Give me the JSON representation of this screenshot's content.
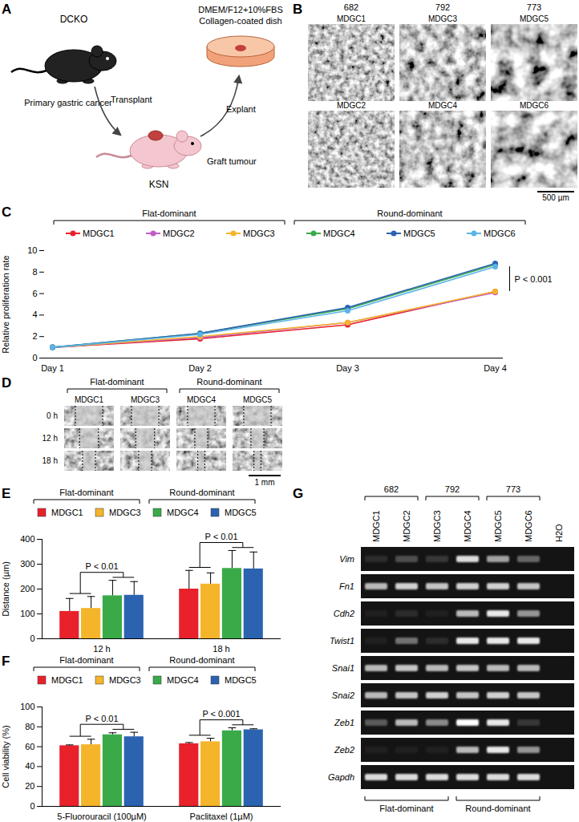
{
  "chart_data": [
    {
      "panel_label": "C",
      "type": "line",
      "categories": [
        "Day 1",
        "Day 2",
        "Day 3",
        "Day 4"
      ],
      "ylabel": "Relative proliferation rate",
      "ylim": [
        0,
        10
      ],
      "yticks": [
        0,
        2,
        4,
        6,
        8,
        10
      ],
      "marker": "circle",
      "legend": "top",
      "groups": [
        {
          "label": "Flat-dominant",
          "members": [
            "MDGC1",
            "MDGC2",
            "MDGC3"
          ]
        },
        {
          "label": "Round-dominant",
          "members": [
            "MDGC4",
            "MDGC5",
            "MDGC6"
          ]
        }
      ],
      "series": [
        {
          "name": "MDGC1",
          "color": "#e8212b",
          "values": [
            1,
            1.8,
            3.1,
            6.2
          ],
          "errors": [
            0,
            0.06,
            0.1,
            0.12
          ]
        },
        {
          "name": "MDGC2",
          "color": "#c05cc4",
          "values": [
            1,
            1.9,
            3.3,
            6.1
          ],
          "errors": [
            0,
            0.06,
            0.12,
            0.1
          ]
        },
        {
          "name": "MDGC3",
          "color": "#f5b52a",
          "values": [
            1,
            2.0,
            3.3,
            6.2
          ],
          "errors": [
            0,
            0.08,
            0.12,
            0.12
          ]
        },
        {
          "name": "MDGC4",
          "color": "#3aaa48",
          "values": [
            1,
            2.3,
            4.6,
            8.7
          ],
          "errors": [
            0,
            0.08,
            0.12,
            0.2
          ]
        },
        {
          "name": "MDGC5",
          "color": "#2b63b0",
          "values": [
            1,
            2.3,
            4.7,
            8.8
          ],
          "errors": [
            0,
            0.08,
            0.12,
            0.2
          ]
        },
        {
          "name": "MDGC6",
          "color": "#5ab4e6",
          "values": [
            1,
            2.2,
            4.4,
            8.5
          ],
          "errors": [
            0,
            0.08,
            0.15,
            0.25
          ]
        }
      ],
      "annotations": [
        {
          "text": "P < 0.001",
          "category": "Day 4"
        }
      ]
    },
    {
      "panel_label": "E",
      "type": "bar",
      "categories": [
        "12 h",
        "18 h"
      ],
      "ylabel": "Distance (µm)",
      "ylim": [
        0,
        400
      ],
      "yticks": [
        0,
        100,
        200,
        300,
        400
      ],
      "legend": "top",
      "groups": [
        {
          "label": "Flat-dominant",
          "members": [
            "MDGC1",
            "MDGC3"
          ]
        },
        {
          "label": "Round-dominant",
          "members": [
            "MDGC4",
            "MDGC5"
          ]
        }
      ],
      "series": [
        {
          "name": "MDGC1",
          "color": "#e8212b",
          "values": [
            110,
            200
          ],
          "errors": [
            52,
            75
          ]
        },
        {
          "name": "MDGC3",
          "color": "#f5b52a",
          "values": [
            122,
            220
          ],
          "errors": [
            48,
            45
          ]
        },
        {
          "name": "MDGC4",
          "color": "#3aaa48",
          "values": [
            173,
            283
          ],
          "errors": [
            62,
            72
          ]
        },
        {
          "name": "MDGC5",
          "color": "#2b63b0",
          "values": [
            175,
            281
          ],
          "errors": [
            55,
            68
          ]
        }
      ],
      "annotations": [
        {
          "text": "P < 0.01",
          "category": "12 h"
        },
        {
          "text": "P < 0.01",
          "category": "18 h"
        }
      ]
    },
    {
      "panel_label": "F",
      "type": "bar",
      "categories": [
        "5-Fluorouracil (100µM)",
        "Paclitaxel (1µM)"
      ],
      "ylabel": "Cell viability (%)",
      "ylim": [
        0,
        100
      ],
      "yticks": [
        0,
        20,
        40,
        60,
        80,
        100
      ],
      "legend": "top",
      "groups": [
        {
          "label": "Flat-dominant",
          "members": [
            "MDGC1",
            "MDGC3"
          ]
        },
        {
          "label": "Round-dominant",
          "members": [
            "MDGC4",
            "MDGC5"
          ]
        }
      ],
      "series": [
        {
          "name": "MDGC1",
          "color": "#e8212b",
          "values": [
            61,
            63
          ],
          "errors": [
            0.8,
            1.2
          ]
        },
        {
          "name": "MDGC3",
          "color": "#f5b52a",
          "values": [
            62,
            65
          ],
          "errors": [
            5.5,
            3.5
          ]
        },
        {
          "name": "MDGC4",
          "color": "#3aaa48",
          "values": [
            72,
            76
          ],
          "errors": [
            2,
            3
          ]
        },
        {
          "name": "MDGC5",
          "color": "#2b63b0",
          "values": [
            70,
            77
          ],
          "errors": [
            4.5,
            1
          ]
        }
      ],
      "annotations": [
        {
          "text": "P < 0.01",
          "category": "5-Fluorouracil (100µM)"
        },
        {
          "text": "P < 0.001",
          "category": "Paclitaxel (1µM)"
        }
      ]
    }
  ],
  "panel_a": {
    "panel_label": "A",
    "donor": "DCKO",
    "donor_note": "Primary gastric cancer",
    "steps": [
      "Transplant",
      "Explant"
    ],
    "host": "KSN",
    "graft": "Graft tumour",
    "culture": [
      "DMEM/F12+10%FBS",
      "Collagen-coated dish"
    ]
  },
  "panel_b": {
    "panel_label": "B",
    "columns": [
      {
        "label": "682",
        "lines": [
          "MDGC1",
          "MDGC2"
        ]
      },
      {
        "label": "792",
        "lines": [
          "MDGC3",
          "MDGC4"
        ]
      },
      {
        "label": "773",
        "lines": [
          "MDGC5",
          "MDGC6"
        ]
      }
    ],
    "scale_bar": "500 µm"
  },
  "panel_d": {
    "panel_label": "D",
    "groups": [
      {
        "label": "Flat-dominant",
        "lines": [
          "MDGC1",
          "MDGC3"
        ]
      },
      {
        "label": "Round-dominant",
        "lines": [
          "MDGC4",
          "MDGC5"
        ]
      }
    ],
    "rows": [
      "0 h",
      "12 h",
      "18 h"
    ],
    "scale_bar": "1 mm"
  },
  "panel_g": {
    "panel_label": "G",
    "groups": [
      {
        "label": "682",
        "lanes": [
          "MDGC1",
          "MDGC2"
        ]
      },
      {
        "label": "792",
        "lanes": [
          "MDGC3",
          "MDGC4"
        ]
      },
      {
        "label": "773",
        "lanes": [
          "MDGC5",
          "MDGC6"
        ]
      }
    ],
    "control": "H2O",
    "genes": [
      "Vim",
      "Fn1",
      "Cdh2",
      "Twist1",
      "Snai1",
      "Snai2",
      "Zeb1",
      "Zeb2",
      "Gapdh"
    ],
    "band_intensity": [
      [
        0.1,
        0.25,
        0.15,
        0.85,
        0.6,
        0.35,
        0
      ],
      [
        0.7,
        0.8,
        0.75,
        0.8,
        0.8,
        0.75,
        0
      ],
      [
        0.05,
        0.1,
        0.05,
        0.7,
        0.9,
        0.55,
        0
      ],
      [
        0.05,
        0.4,
        0.1,
        0.9,
        0.9,
        0.9,
        0
      ],
      [
        0.7,
        0.75,
        0.7,
        0.75,
        0.7,
        0.7,
        0
      ],
      [
        0.7,
        0.75,
        0.8,
        0.75,
        0.8,
        0.75,
        0
      ],
      [
        0.3,
        0.7,
        0.5,
        1.0,
        0.9,
        0.15,
        0
      ],
      [
        0.05,
        0.05,
        0.05,
        0.7,
        0.9,
        0.55,
        0
      ],
      [
        0.85,
        0.85,
        0.85,
        0.85,
        0.85,
        0.85,
        0
      ]
    ],
    "bottom_groups": [
      {
        "label": "Flat-dominant",
        "lanes": [
          "MDGC1",
          "MDGC2",
          "MDGC3"
        ]
      },
      {
        "label": "Round-dominant",
        "lanes": [
          "MDGC4",
          "MDGC5",
          "MDGC6"
        ]
      }
    ]
  }
}
